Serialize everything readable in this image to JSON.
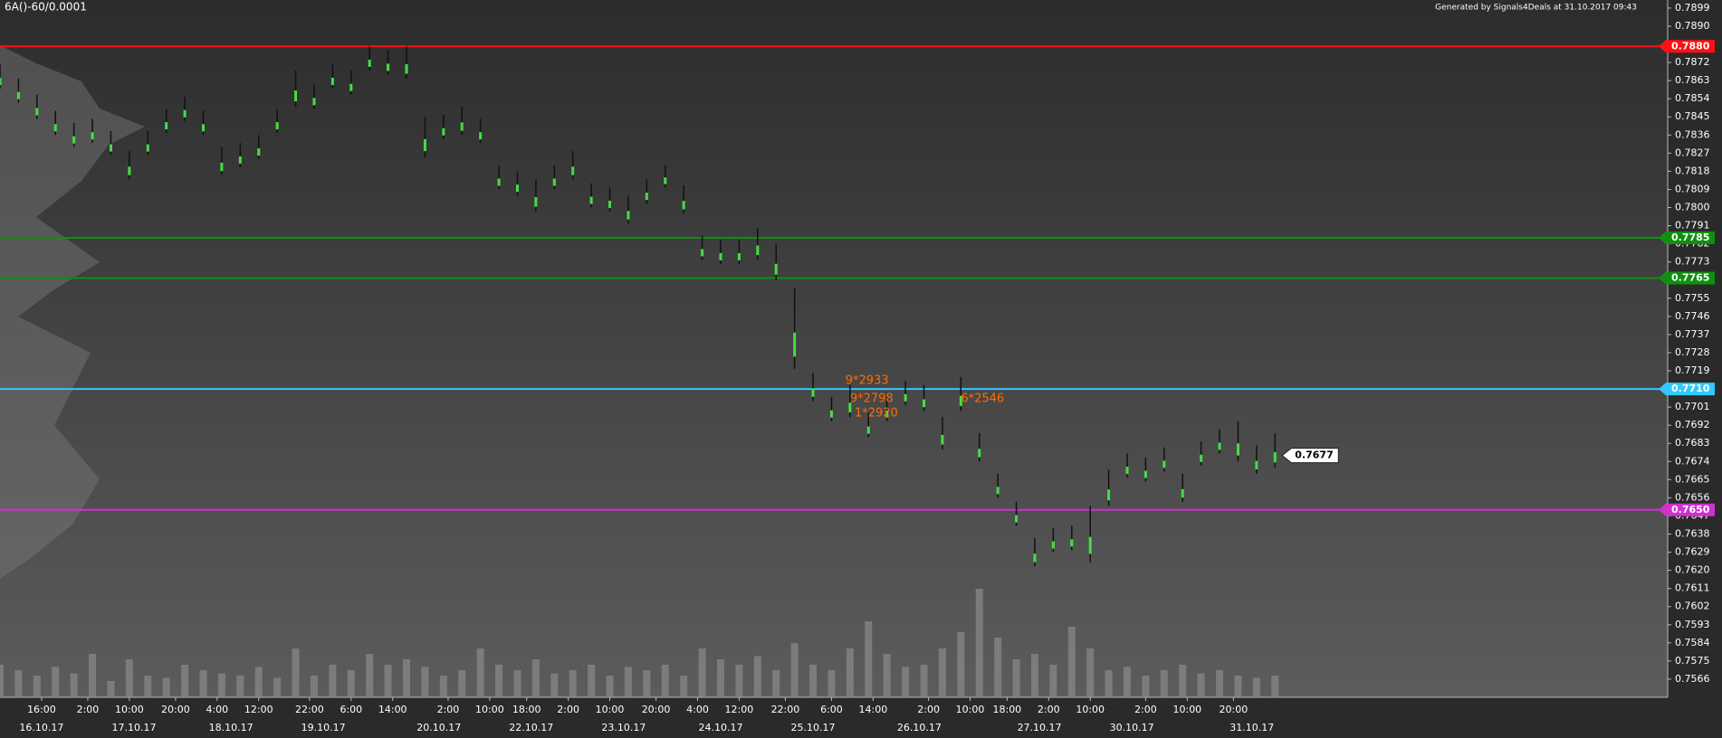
{
  "chart_data": {
    "type": "ohlc",
    "title": "6A()-60/0.0001",
    "subtitle": "Generated by Signals4Deals at 31.10.2017 09:43",
    "xlim": [
      0,
      361
    ],
    "ylim": [
      0.7557,
      0.7903
    ],
    "yticks": [
      0.7899,
      {
        "value": 0.789,
        "label": "0.7890"
      },
      0.7872,
      0.7863,
      0.7854,
      0.7845,
      0.7836,
      0.7827,
      0.7818,
      0.7809,
      {
        "value": 0.78,
        "label": "0.7800"
      },
      0.7791,
      0.7782,
      0.7773,
      0.7755,
      0.7746,
      0.7737,
      0.7728,
      0.7719,
      0.7701,
      0.7692,
      0.7683,
      0.7674,
      0.7665,
      0.7656,
      0.7647,
      0.7638,
      0.7629,
      {
        "value": 0.762,
        "label": "0.7620"
      },
      0.7611,
      0.7602,
      0.7593,
      0.7584,
      0.7575,
      0.7566
    ],
    "xticks": [
      {
        "value": 9,
        "label": "16:00"
      },
      {
        "value": 19,
        "label": "2:00"
      },
      {
        "value": 28,
        "label": "10:00"
      },
      {
        "value": 38,
        "label": "20:00"
      },
      {
        "value": 47,
        "label": "4:00"
      },
      {
        "value": 56,
        "label": "12:00"
      },
      {
        "value": 67,
        "label": "22:00"
      },
      {
        "value": 76,
        "label": "6:00"
      },
      {
        "value": 85,
        "label": "14:00"
      },
      {
        "value": 97,
        "label": "2:00"
      },
      {
        "value": 106,
        "label": "10:00"
      },
      {
        "value": 114,
        "label": "18:00"
      },
      {
        "value": 123,
        "label": "2:00"
      },
      {
        "value": 132,
        "label": "10:00"
      },
      {
        "value": 142,
        "label": "20:00"
      },
      {
        "value": 151,
        "label": "4:00"
      },
      {
        "value": 160,
        "label": "12:00"
      },
      {
        "value": 170,
        "label": "22:00"
      },
      {
        "value": 180,
        "label": "6:00"
      },
      {
        "value": 189,
        "label": "14:00"
      },
      {
        "value": 201,
        "label": "2:00"
      },
      {
        "value": 210,
        "label": "10:00"
      },
      {
        "value": 218,
        "label": "18:00"
      },
      {
        "value": 227,
        "label": "2:00"
      },
      {
        "value": 236,
        "label": "10:00"
      },
      {
        "value": 248,
        "label": "2:00"
      },
      {
        "value": 257,
        "label": "10:00"
      },
      {
        "value": 267,
        "label": "20:00"
      }
    ],
    "date_ticks": [
      {
        "value": 9,
        "label": "16.10.17"
      },
      {
        "value": 29,
        "label": "17.10.17"
      },
      {
        "value": 50,
        "label": "18.10.17"
      },
      {
        "value": 70,
        "label": "19.10.17"
      },
      {
        "value": 95,
        "label": "20.10.17"
      },
      {
        "value": 115,
        "label": "22.10.17"
      },
      {
        "value": 135,
        "label": "23.10.17"
      },
      {
        "value": 156,
        "label": "24.10.17"
      },
      {
        "value": 176,
        "label": "25.10.17"
      },
      {
        "value": 199,
        "label": "26.10.17"
      },
      {
        "value": 225,
        "label": "27.10.17"
      },
      {
        "value": 245,
        "label": "30.10.17"
      },
      {
        "value": 271,
        "label": "31.10.17"
      }
    ],
    "bar_color": "#111111",
    "wick_color": "#44dd44",
    "volume_color": "#8a8a8a",
    "x": [
      0,
      4,
      8,
      12,
      16,
      20,
      24,
      28,
      32,
      36,
      40,
      44,
      48,
      52,
      56,
      60,
      64,
      68,
      72,
      76,
      80,
      84,
      88,
      92,
      96,
      100,
      104,
      108,
      112,
      116,
      120,
      124,
      128,
      132,
      136,
      140,
      144,
      148,
      152,
      156,
      160,
      164,
      168,
      172,
      176,
      180,
      184,
      188,
      192,
      196,
      200,
      204,
      208,
      212,
      216,
      220,
      224,
      228,
      232,
      236,
      240,
      244,
      248,
      252,
      256,
      260,
      264,
      268,
      272,
      276
    ],
    "low": [
      0.7859,
      0.7852,
      0.7844,
      0.7836,
      0.783,
      0.7832,
      0.7826,
      0.7814,
      0.7826,
      0.7837,
      0.7843,
      0.7836,
      0.7816,
      0.782,
      0.7824,
      0.7837,
      0.785,
      0.7849,
      0.7859,
      0.7856,
      0.7868,
      0.7866,
      0.7864,
      0.7825,
      0.7834,
      0.7836,
      0.7832,
      0.7809,
      0.7806,
      0.7798,
      0.7809,
      0.7814,
      0.78,
      0.7798,
      0.7792,
      0.7802,
      0.781,
      0.7797,
      0.7774,
      0.7772,
      0.7772,
      0.7774,
      0.7764,
      0.772,
      0.7704,
      0.7694,
      0.7696,
      0.7686,
      0.7694,
      0.7702,
      0.7699,
      0.768,
      0.7699,
      0.7674,
      0.7656,
      0.7642,
      0.7622,
      0.7629,
      0.763,
      0.7624,
      0.7652,
      0.7666,
      0.7664,
      0.7669,
      0.7654,
      0.7672,
      0.7678,
      0.7674,
      0.7668,
      0.7671
    ],
    "high": [
      0.7871,
      0.7864,
      0.7856,
      0.7848,
      0.7842,
      0.7844,
      0.7838,
      0.7828,
      0.7838,
      0.7849,
      0.7855,
      0.7848,
      0.783,
      0.7832,
      0.7836,
      0.7849,
      0.7868,
      0.7861,
      0.7871,
      0.7868,
      0.788,
      0.7878,
      0.788,
      0.7845,
      0.7846,
      0.785,
      0.7844,
      0.7821,
      0.7818,
      0.7814,
      0.7821,
      0.7828,
      0.7812,
      0.781,
      0.7806,
      0.7814,
      0.7821,
      0.7811,
      0.7786,
      0.7784,
      0.7784,
      0.779,
      0.7782,
      0.776,
      0.7718,
      0.7706,
      0.7712,
      0.7698,
      0.7706,
      0.7714,
      0.7712,
      0.7696,
      0.7716,
      0.7688,
      0.7668,
      0.7654,
      0.7636,
      0.7641,
      0.7642,
      0.7652,
      0.767,
      0.7678,
      0.7676,
      0.7681,
      0.7668,
      0.7684,
      0.769,
      0.7694,
      0.7682,
      0.7688
    ],
    "volume": [
      30,
      25,
      20,
      28,
      22,
      40,
      15,
      35,
      20,
      18,
      30,
      25,
      22,
      20,
      28,
      18,
      45,
      20,
      30,
      25,
      40,
      30,
      35,
      28,
      20,
      25,
      45,
      30,
      25,
      35,
      22,
      25,
      30,
      20,
      28,
      25,
      30,
      20,
      45,
      35,
      30,
      38,
      25,
      50,
      30,
      25,
      45,
      70,
      40,
      28,
      30,
      45,
      60,
      100,
      55,
      35,
      40,
      30,
      65,
      45,
      25,
      28,
      20,
      25,
      30,
      22,
      25,
      20,
      18,
      20
    ],
    "levels": [
      {
        "value": 0.788,
        "label": "0.7880",
        "color": "#ff1010"
      },
      {
        "value": 0.7785,
        "label": "0.7785",
        "color": "#109010"
      },
      {
        "value": 0.7765,
        "label": "0.7765",
        "color": "#109010"
      },
      {
        "value": 0.771,
        "label": "0.7710",
        "color": "#33c8ff"
      },
      {
        "value": 0.765,
        "label": "0.7650",
        "color": "#d030d0"
      }
    ],
    "last": {
      "x": 276,
      "value": 0.7677
    },
    "annotations": [
      {
        "text": "9*2933",
        "x": 183,
        "y": 0.7714
      },
      {
        "text": "9*2798",
        "x": 184,
        "y": 0.7705
      },
      {
        "text": "1*2920",
        "x": 185,
        "y": 0.7698
      },
      {
        "text": "6*2546",
        "x": 208,
        "y": 0.7705
      }
    ],
    "annotation_color": "#ff6a00"
  }
}
